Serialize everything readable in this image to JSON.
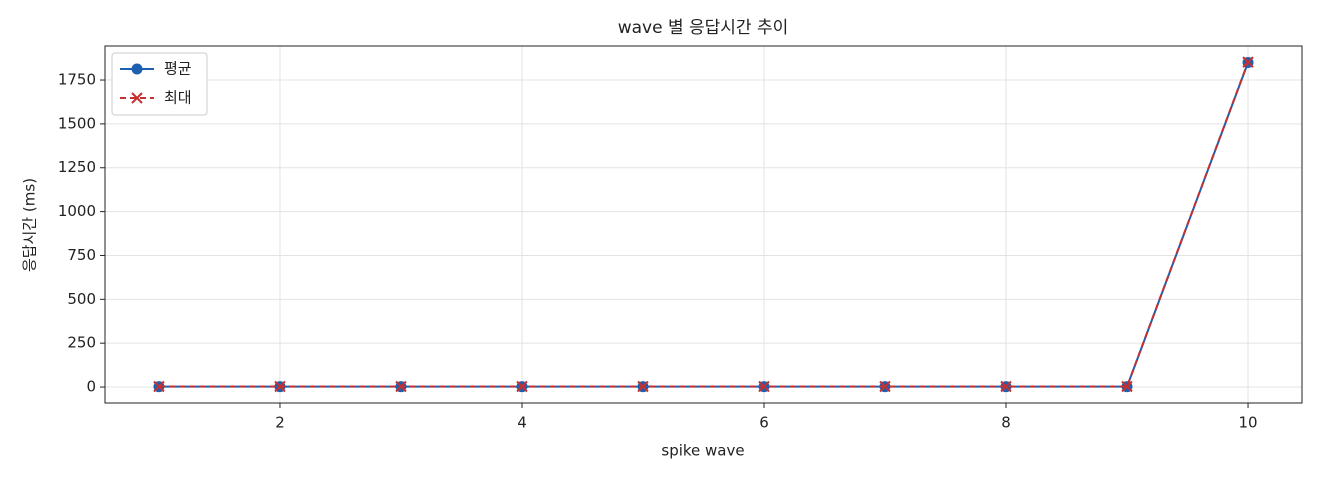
{
  "chart_data": {
    "type": "line",
    "title": "wave 별 응답시간 추이",
    "x_label": "spike wave",
    "y_label": "응답시간 (ms)",
    "x": [
      1,
      2,
      3,
      4,
      5,
      6,
      7,
      8,
      9,
      10
    ],
    "series": [
      {
        "name": "평균",
        "color": "#1f5fb0",
        "marker": "circle",
        "dashed": false,
        "values": [
          2,
          2,
          2,
          2,
          2,
          2,
          2,
          2,
          2,
          1850
        ]
      },
      {
        "name": "최대",
        "color": "#c53030",
        "marker": "x",
        "dashed": true,
        "values": [
          3,
          3,
          3,
          3,
          3,
          3,
          3,
          3,
          3,
          1852
        ]
      }
    ],
    "xlim": [
      0.554,
      10.446
    ],
    "ylim": [
      -91,
      1944
    ],
    "xticks": [
      2,
      4,
      6,
      8,
      10
    ],
    "yticks": [
      0,
      250,
      500,
      750,
      1000,
      1250,
      1500,
      1750
    ],
    "grid": true,
    "legend": "upper left"
  }
}
